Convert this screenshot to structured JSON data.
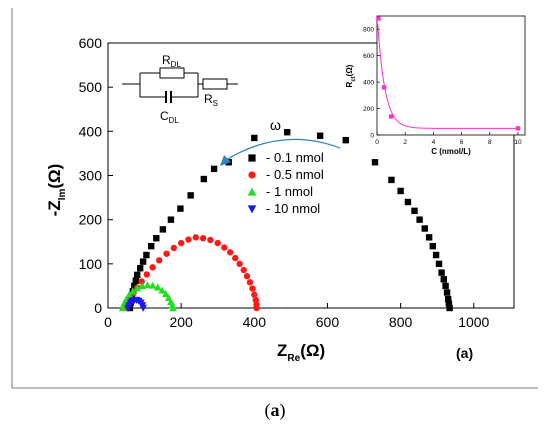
{
  "caption": {
    "open": "(",
    "letter": "a",
    "close": ")"
  },
  "panel_label": "(a)",
  "circuit": {
    "r_dl": "R",
    "r_dl_sub": "DL",
    "r_s": "R",
    "r_s_sub": "S",
    "c_dl": "C",
    "c_dl_sub": "DL"
  },
  "annotation": {
    "omega": "ω"
  },
  "colors": {
    "s1": "#000000",
    "s2": "#ff1a1a",
    "s3": "#22dd22",
    "s4": "#1a1aee",
    "inset_curve": "#ff33cc",
    "arrow": "#2e86c1"
  },
  "chart_data": [
    {
      "type": "scatter",
      "title": "",
      "xlabel": {
        "main": "Z",
        "sub": "Re",
        "unit": "(Ω)"
      },
      "ylabel": {
        "pre": "-Z",
        "sub": "Im",
        "unit": "(Ω)"
      },
      "xlim": [
        0,
        1110
      ],
      "ylim": [
        0,
        600
      ],
      "xticks": [
        "0",
        "200",
        "400",
        "600",
        "800",
        "1000"
      ],
      "yticks": [
        "0",
        "100",
        "200",
        "300",
        "400",
        "500",
        "600"
      ],
      "legend_position": "center-left",
      "series": [
        {
          "name": "- 0.1 nmol",
          "marker": "square",
          "color": "#000000",
          "x": [
            60,
            62,
            65,
            68,
            72,
            76,
            80,
            88,
            96,
            105,
            118,
            132,
            150,
            172,
            198,
            226,
            262,
            290,
            330,
            400,
            490,
            580,
            650,
            730,
            775,
            800,
            820,
            838,
            852,
            866,
            878,
            888,
            897,
            905,
            912,
            918,
            923,
            927,
            930,
            932,
            934
          ],
          "y": [
            0,
            12,
            25,
            38,
            50,
            62,
            75,
            90,
            105,
            120,
            140,
            158,
            178,
            200,
            225,
            255,
            292,
            315,
            330,
            385,
            398,
            390,
            380,
            330,
            290,
            265,
            240,
            220,
            200,
            180,
            160,
            140,
            120,
            100,
            80,
            65,
            50,
            35,
            20,
            10,
            0
          ]
        },
        {
          "name": "- 0.5 nmol",
          "marker": "circle",
          "color": "#ff1a1a",
          "x": [
            52,
            56,
            62,
            70,
            80,
            92,
            106,
            122,
            140,
            160,
            180,
            200,
            220,
            240,
            260,
            280,
            300,
            318,
            334,
            348,
            360,
            371,
            380,
            388,
            395,
            400,
            404,
            406,
            406
          ],
          "y": [
            0,
            10,
            22,
            34,
            46,
            60,
            76,
            92,
            108,
            123,
            136,
            147,
            155,
            160,
            158,
            154,
            147,
            137,
            126,
            113,
            100,
            86,
            72,
            58,
            44,
            30,
            18,
            8,
            0
          ]
        },
        {
          "name": "- 1 nmol",
          "marker": "triangle",
          "color": "#22dd22",
          "x": [
            40,
            44,
            50,
            58,
            68,
            80,
            94,
            108,
            122,
            136,
            148,
            158,
            166,
            172,
            176,
            178
          ],
          "y": [
            0,
            10,
            20,
            30,
            38,
            45,
            50,
            52,
            51,
            47,
            40,
            32,
            23,
            14,
            6,
            0
          ]
        },
        {
          "name": "- 10 nmol",
          "marker": "triangle-down",
          "color": "#1a1aee",
          "x": [
            55,
            58,
            62,
            66,
            72,
            78,
            84,
            90,
            94,
            96
          ],
          "y": [
            0,
            6,
            12,
            16,
            18,
            18,
            16,
            12,
            6,
            0
          ]
        }
      ]
    },
    {
      "type": "scatter",
      "title": "",
      "xlabel": "C (nmol/L)",
      "ylabel": {
        "main": "R",
        "sub": "ct",
        "unit": "(Ω)"
      },
      "xlim": [
        0,
        10.5
      ],
      "ylim": [
        0,
        900
      ],
      "xticks": [
        "0",
        "2",
        "4",
        "6",
        "8",
        "10"
      ],
      "yticks": [
        "0",
        "200",
        "400",
        "600",
        "800"
      ],
      "points": {
        "x": [
          0.1,
          0.5,
          1,
          10
        ],
        "y": [
          880,
          360,
          140,
          50
        ]
      },
      "fit": {
        "type": "exponential-decay",
        "color": "#ff33cc"
      }
    }
  ]
}
